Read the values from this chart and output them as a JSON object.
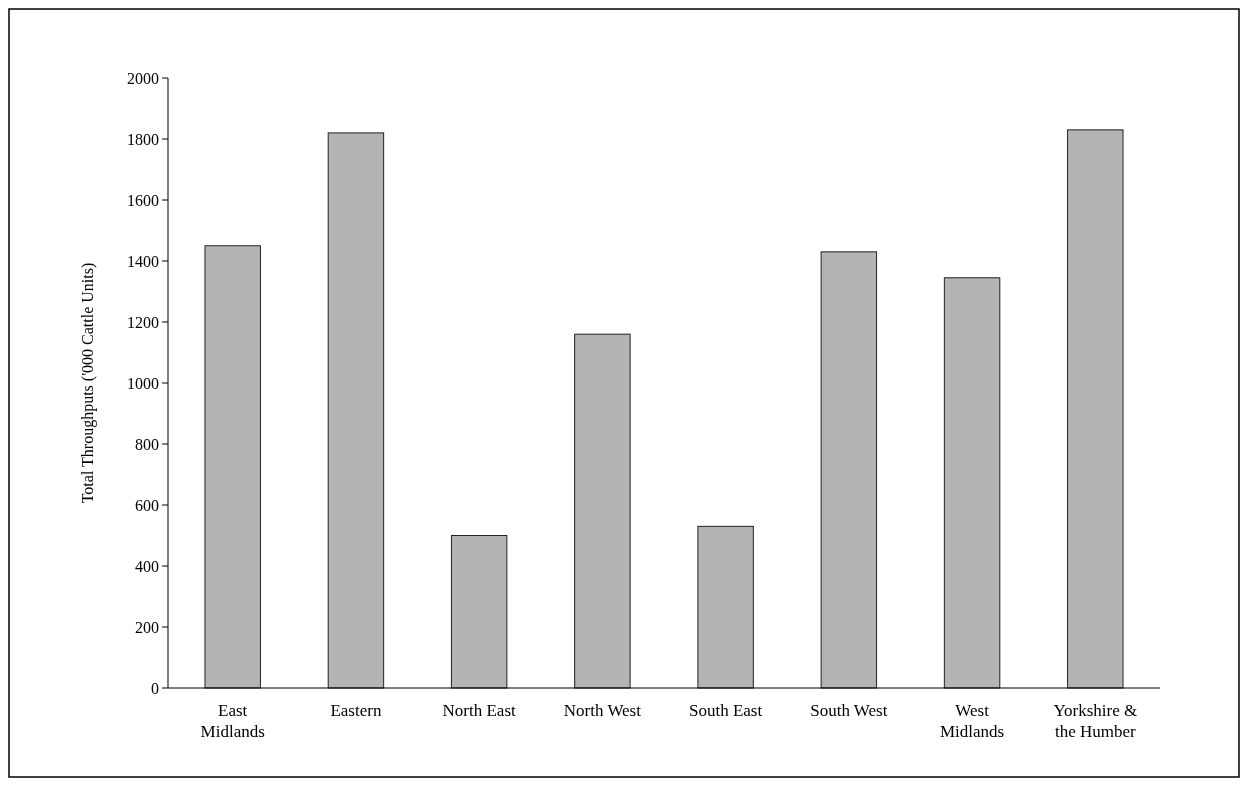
{
  "chart_data": {
    "type": "bar",
    "ylabel": "Total Throughputs ('000 Cattle Units)",
    "categories": [
      "East Midlands",
      "Eastern",
      "North East",
      "North West",
      "South East",
      "South West",
      "West Midlands",
      "Yorkshire & the Humber"
    ],
    "values": [
      1450,
      1820,
      500,
      1160,
      530,
      1430,
      1345,
      1830
    ],
    "color": "#b4b4b4",
    "ylim": [
      0,
      2000
    ],
    "yticks": [
      0,
      200,
      400,
      600,
      800,
      1000,
      1200,
      1400,
      1600,
      1800,
      2000
    ],
    "grid": false
  }
}
